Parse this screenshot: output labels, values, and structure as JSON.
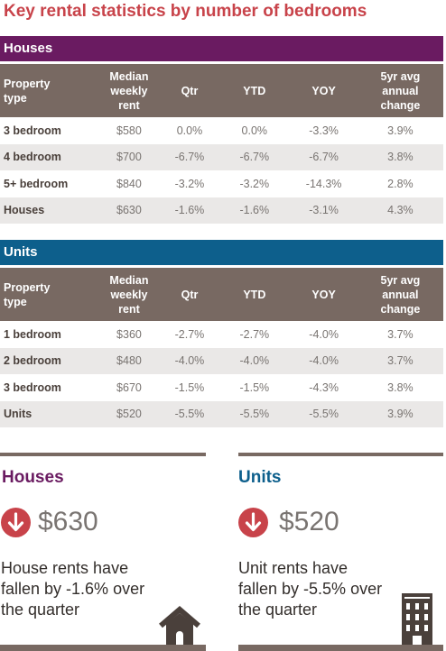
{
  "title": "Key rental statistics by number of bedrooms",
  "columns": {
    "property": [
      "Property",
      "type"
    ],
    "median": [
      "Median",
      "weekly",
      "rent"
    ],
    "qtr": "Qtr",
    "ytd": "YTD",
    "yoy": "YOY",
    "five_yr": [
      "5yr avg",
      "annual",
      "change"
    ]
  },
  "houses": {
    "heading": "Houses",
    "rows": [
      {
        "type": "3 bedroom",
        "rent": "$580",
        "qtr": "0.0%",
        "ytd": "0.0%",
        "yoy": "-3.3%",
        "avg5": "3.9%"
      },
      {
        "type": "4 bedroom",
        "rent": "$700",
        "qtr": "-6.7%",
        "ytd": "-6.7%",
        "yoy": "-6.7%",
        "avg5": "3.8%"
      },
      {
        "type": "5+ bedroom",
        "rent": "$840",
        "qtr": "-3.2%",
        "ytd": "-3.2%",
        "yoy": "-14.3%",
        "avg5": "2.8%"
      },
      {
        "type": "Houses",
        "rent": "$630",
        "qtr": "-1.6%",
        "ytd": "-1.6%",
        "yoy": "-3.1%",
        "avg5": "4.3%"
      }
    ]
  },
  "units": {
    "heading": "Units",
    "rows": [
      {
        "type": "1 bedroom",
        "rent": "$360",
        "qtr": "-2.7%",
        "ytd": "-2.7%",
        "yoy": "-4.0%",
        "avg5": "3.7%"
      },
      {
        "type": "2 bedroom",
        "rent": "$480",
        "qtr": "-4.0%",
        "ytd": "-4.0%",
        "yoy": "-4.0%",
        "avg5": "3.7%"
      },
      {
        "type": "3 bedroom",
        "rent": "$670",
        "qtr": "-1.5%",
        "ytd": "-1.5%",
        "yoy": "-4.3%",
        "avg5": "3.8%"
      },
      {
        "type": "Units",
        "rent": "$520",
        "qtr": "-5.5%",
        "ytd": "-5.5%",
        "yoy": "-5.5%",
        "avg5": "3.9%"
      }
    ]
  },
  "summary": {
    "houses": {
      "title": "Houses",
      "amount": "$630",
      "lines": [
        "House rents have",
        "fallen by -1.6% over",
        "the quarter"
      ],
      "icon": "house-icon"
    },
    "units": {
      "title": "Units",
      "amount": "$520",
      "lines": [
        "Unit rents have",
        "fallen by -5.5% over",
        "the quarter"
      ],
      "icon": "building-icon"
    }
  },
  "colors": {
    "title": "#c8434a",
    "houses": "#6a1b61",
    "units": "#0d5f8c",
    "header": "#786962",
    "arrow": "#c8434a"
  }
}
